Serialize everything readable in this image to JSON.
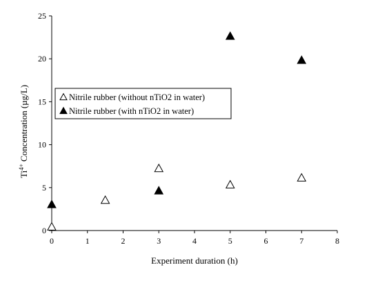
{
  "chart_data": {
    "type": "scatter",
    "title": "",
    "xlabel": "Experiment duration (h)",
    "ylabel_prefix": "Ti",
    "ylabel_superscript": "4+",
    "ylabel_rest": " Concentration (µg/L)",
    "xlim": [
      0,
      8
    ],
    "ylim": [
      0,
      25
    ],
    "xticks": [
      0,
      1,
      2,
      3,
      4,
      5,
      6,
      7,
      8
    ],
    "yticks": [
      0,
      5,
      10,
      15,
      20,
      25
    ],
    "grid": false,
    "legend_position": "left-middle",
    "series": [
      {
        "name": "Nitrile rubber (without nTiO2 in water)",
        "marker": "open-triangle",
        "color": "#000000",
        "x": [
          0,
          1.5,
          3,
          5,
          7
        ],
        "y": [
          0.4,
          3.5,
          7.2,
          5.3,
          6.1
        ]
      },
      {
        "name": "Nitrile rubber (with nTiO2 in water)",
        "marker": "filled-triangle",
        "color": "#000000",
        "x": [
          0,
          3,
          5,
          7
        ],
        "y": [
          3.0,
          4.6,
          22.6,
          19.8
        ]
      }
    ]
  }
}
